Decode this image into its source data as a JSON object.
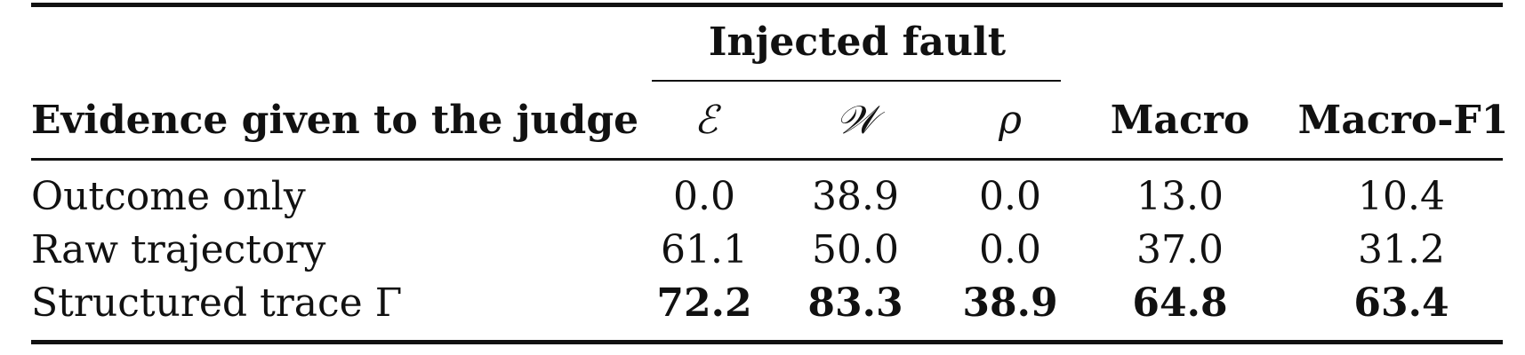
{
  "table": {
    "group_header": "Injected fault",
    "columns": {
      "evidence": "Evidence given to the judge",
      "e": "ℰ",
      "w": "𝒲",
      "rho": "ρ",
      "macro": "Macro",
      "macro_f1": "Macro-F1"
    },
    "rows": [
      {
        "evidence": "Outcome only",
        "e": "0.0",
        "w": "38.9",
        "rho": "0.0",
        "macro": "13.0",
        "macro_f1": "10.4",
        "bold": false
      },
      {
        "evidence": "Raw trajectory",
        "e": "61.1",
        "w": "50.0",
        "rho": "0.0",
        "macro": "37.0",
        "macro_f1": "31.2",
        "bold": false
      },
      {
        "evidence": "Structured trace Γ",
        "e": "72.2",
        "w": "83.3",
        "rho": "38.9",
        "macro": "64.8",
        "macro_f1": "63.4",
        "bold": true
      }
    ]
  }
}
